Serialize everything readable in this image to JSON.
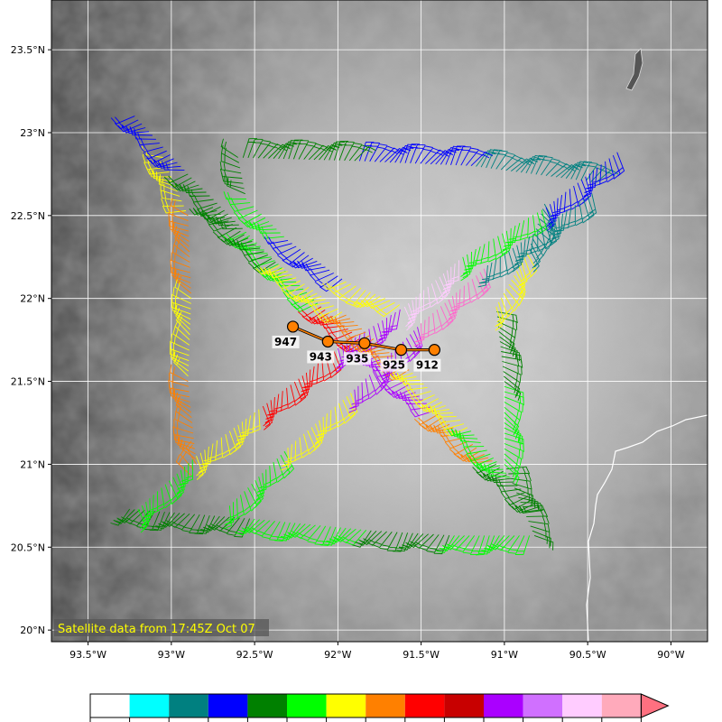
{
  "map": {
    "caption": "Satellite data from 17:45Z Oct 07",
    "lon_range": [
      -93.72,
      -89.78
    ],
    "lat_range": [
      19.93,
      23.8
    ],
    "lon_ticks": [
      {
        "value": -93.5,
        "label": "93.5°W"
      },
      {
        "value": -93.0,
        "label": "93°W"
      },
      {
        "value": -92.5,
        "label": "92.5°W"
      },
      {
        "value": -92.0,
        "label": "92°W"
      },
      {
        "value": -91.5,
        "label": "91.5°W"
      },
      {
        "value": -91.0,
        "label": "91°W"
      },
      {
        "value": -90.5,
        "label": "90.5°W"
      },
      {
        "value": -90.0,
        "label": "90°W"
      }
    ],
    "lat_ticks": [
      {
        "value": 23.5,
        "label": "23.5°N"
      },
      {
        "value": 23.0,
        "label": "23°N"
      },
      {
        "value": 22.5,
        "label": "22.5°N"
      },
      {
        "value": 22.0,
        "label": "22°N"
      },
      {
        "value": 21.5,
        "label": "21.5°N"
      },
      {
        "value": 21.0,
        "label": "21°N"
      },
      {
        "value": 20.5,
        "label": "20.5°N"
      },
      {
        "value": 20.0,
        "label": "20°N"
      }
    ],
    "center_track": [
      {
        "lon": -92.27,
        "lat": 21.83,
        "label": "947"
      },
      {
        "lon": -92.06,
        "lat": 21.74,
        "label": "943"
      },
      {
        "lon": -91.84,
        "lat": 21.73,
        "label": "935"
      },
      {
        "lon": -91.62,
        "lat": 21.69,
        "label": "925"
      },
      {
        "lon": -91.42,
        "lat": 21.69,
        "label": "912"
      }
    ],
    "flight_legs": [
      {
        "name": "south-leg",
        "points": [
          [
            -93.25,
            20.73
          ],
          [
            -92.5,
            20.67
          ],
          [
            -91.8,
            20.6
          ],
          [
            -91.3,
            20.57
          ],
          [
            -90.82,
            20.57
          ]
        ],
        "colors": [
          "#008000",
          "#00ff00",
          "#008000",
          "#00ff00"
        ]
      },
      {
        "name": "east-leg",
        "points": [
          [
            -90.82,
            20.57
          ],
          [
            -91.0,
            21.0
          ],
          [
            -91.0,
            21.5
          ],
          [
            -91.05,
            21.95
          ],
          [
            -90.85,
            22.3
          ],
          [
            -90.75,
            22.6
          ]
        ],
        "colors": [
          "#008000",
          "#00ff00",
          "#008000",
          "#ffff00",
          "#008080"
        ]
      },
      {
        "name": "north-leg",
        "points": [
          [
            -90.45,
            22.7
          ],
          [
            -91.2,
            22.8
          ],
          [
            -91.9,
            22.83
          ],
          [
            -92.6,
            22.85
          ]
        ],
        "colors": [
          "#008080",
          "#0000ff",
          "#008000",
          "#00ff00"
        ]
      },
      {
        "name": "west-leg",
        "points": [
          [
            -93.05,
            22.85
          ],
          [
            -92.9,
            22.5
          ],
          [
            -92.88,
            22.0
          ],
          [
            -92.9,
            21.5
          ],
          [
            -92.85,
            21.0
          ],
          [
            -92.9,
            20.9
          ]
        ],
        "colors": [
          "#ffff00",
          "#ff8000",
          "#ffff00",
          "#ff8000",
          "#ff8000"
        ]
      },
      {
        "name": "nw-se-diag",
        "points": [
          [
            -93.22,
            23.1
          ],
          [
            -92.9,
            22.75
          ],
          [
            -92.55,
            22.4
          ],
          [
            -92.1,
            21.95
          ],
          [
            -91.8,
            21.7
          ],
          [
            -91.4,
            21.3
          ],
          [
            -91.05,
            21.0
          ],
          [
            -90.75,
            20.7
          ]
        ],
        "colors": [
          "#0000ff",
          "#008000",
          "#00ff00",
          "#ff0000",
          "#aa00ff",
          "#ff8000",
          "#008000"
        ]
      },
      {
        "name": "sw-ne-diag",
        "points": [
          [
            -93.2,
            20.73
          ],
          [
            -92.85,
            21.05
          ],
          [
            -92.45,
            21.35
          ],
          [
            -92.0,
            21.7
          ],
          [
            -91.6,
            21.95
          ],
          [
            -91.25,
            22.25
          ],
          [
            -90.75,
            22.55
          ],
          [
            -90.3,
            22.9
          ]
        ],
        "colors": [
          "#00ff00",
          "#ffff00",
          "#ff0000",
          "#aa00ff",
          "#ffccff",
          "#00ff00",
          "#0000ff"
        ]
      },
      {
        "name": "nw-se-diag-2",
        "points": [
          [
            -92.75,
            22.55
          ],
          [
            -92.35,
            22.2
          ],
          [
            -91.95,
            21.9
          ],
          [
            -91.55,
            21.55
          ],
          [
            -91.2,
            21.2
          ],
          [
            -90.95,
            20.9
          ]
        ],
        "colors": [
          "#008000",
          "#ffff00",
          "#ff8000",
          "#ffff00",
          "#00ff00"
        ]
      },
      {
        "name": "sw-ne-diag-2",
        "points": [
          [
            -92.65,
            20.75
          ],
          [
            -92.3,
            21.1
          ],
          [
            -91.9,
            21.45
          ],
          [
            -91.5,
            21.85
          ],
          [
            -91.1,
            22.2
          ],
          [
            -90.45,
            22.65
          ]
        ],
        "colors": [
          "#00ff00",
          "#ffff00",
          "#aa00ff",
          "#ff66cc",
          "#008080"
        ]
      },
      {
        "name": "loop-north",
        "points": [
          [
            -92.6,
            22.85
          ],
          [
            -92.55,
            22.6
          ],
          [
            -92.3,
            22.35
          ],
          [
            -91.95,
            22.1
          ],
          [
            -91.6,
            21.95
          ]
        ],
        "colors": [
          "#008000",
          "#00ff00",
          "#0000ff",
          "#ffff00"
        ]
      }
    ]
  },
  "colorbar": {
    "colors": [
      "#ffffff",
      "#00ffff",
      "#008080",
      "#0000ff",
      "#008000",
      "#00ff00",
      "#ffff00",
      "#ff8000",
      "#ff0000",
      "#c80000",
      "#aa00ff",
      "#d070ff",
      "#ffccff",
      "#ffaabb",
      "#ff7080"
    ]
  }
}
